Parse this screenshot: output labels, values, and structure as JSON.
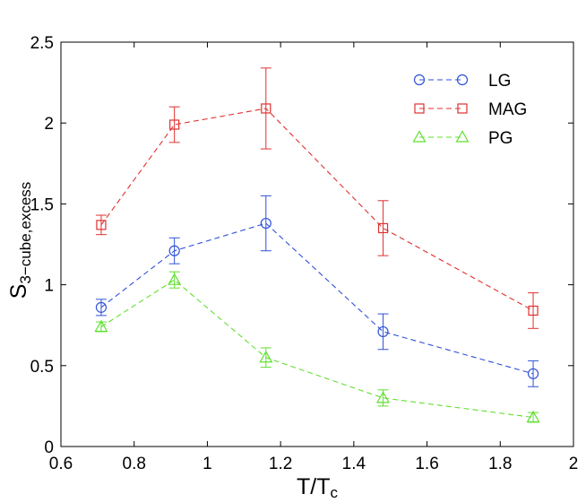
{
  "chart_data": {
    "type": "line",
    "title": "",
    "xlabel": "T/T",
    "xlabel_sub": "c",
    "ylabel": "S",
    "ylabel_sub": "3−cube,excess",
    "xlim": [
      0.6,
      2.0
    ],
    "ylim": [
      0,
      2.5
    ],
    "xticks": [
      0.6,
      0.8,
      1.0,
      1.2,
      1.4,
      1.6,
      1.8,
      2.0
    ],
    "xtick_labels": [
      "0.6",
      "0.8",
      "1",
      "1.2",
      "1.4",
      "1.6",
      "1.8",
      "2"
    ],
    "yticks": [
      0,
      0.5,
      1.0,
      1.5,
      2.0,
      2.5
    ],
    "ytick_labels": [
      "0",
      "0.5",
      "1",
      "1.5",
      "2",
      "2.5"
    ],
    "grid": false,
    "legend_position": "top-right",
    "x": [
      0.71,
      0.91,
      1.16,
      1.48,
      1.89
    ],
    "series": [
      {
        "name": "LG",
        "color": "#3050d8",
        "marker": "circle",
        "values": [
          0.86,
          1.21,
          1.38,
          0.71,
          0.45
        ],
        "errors": [
          0.05,
          0.08,
          0.17,
          0.11,
          0.08
        ]
      },
      {
        "name": "MAG",
        "color": "#e03030",
        "marker": "square",
        "values": [
          1.37,
          1.99,
          2.09,
          1.35,
          0.84
        ],
        "errors": [
          0.06,
          0.11,
          0.25,
          0.17,
          0.11
        ]
      },
      {
        "name": "PG",
        "color": "#60e030",
        "marker": "triangle",
        "values": [
          0.74,
          1.03,
          0.55,
          0.3,
          0.18
        ],
        "errors": [
          0.03,
          0.05,
          0.06,
          0.05,
          0.03
        ]
      }
    ]
  }
}
